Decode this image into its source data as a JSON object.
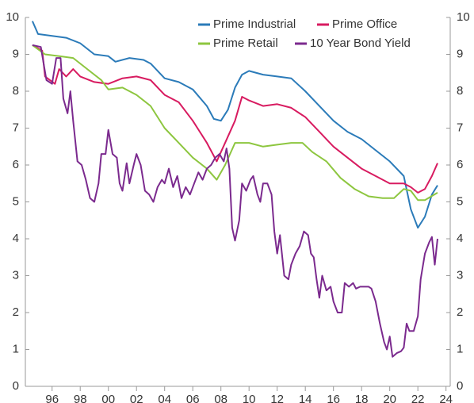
{
  "chart_data": {
    "type": "line",
    "xlim": [
      1994.1,
      2024.3
    ],
    "xticks": [
      {
        "value": 1996,
        "label": "96"
      },
      {
        "value": 1998,
        "label": "98"
      },
      {
        "value": 2000,
        "label": "00"
      },
      {
        "value": 2002,
        "label": "02"
      },
      {
        "value": 2004,
        "label": "04"
      },
      {
        "value": 2006,
        "label": "06"
      },
      {
        "value": 2008,
        "label": "08"
      },
      {
        "value": 2010,
        "label": "10"
      },
      {
        "value": 2012,
        "label": "12"
      },
      {
        "value": 2014,
        "label": "14"
      },
      {
        "value": 2016,
        "label": "16"
      },
      {
        "value": 2018,
        "label": "18"
      },
      {
        "value": 2020,
        "label": "20"
      },
      {
        "value": 2022,
        "label": "22"
      },
      {
        "value": 2024,
        "label": "24"
      }
    ],
    "ylim": [
      0,
      10
    ],
    "yticks": [
      0,
      1,
      2,
      3,
      4,
      5,
      6,
      7,
      8,
      9,
      10
    ],
    "y2lim": [
      0,
      10
    ],
    "y2ticks": [
      0,
      1,
      2,
      3,
      4,
      5,
      6,
      7,
      8,
      9,
      10
    ],
    "legend": "top-right",
    "series": [
      {
        "name": "Prime Industrial",
        "color": "#2b7bb9",
        "x": [
          1994.6,
          1995,
          1996,
          1997,
          1998,
          1999,
          2000,
          2000.5,
          2001.5,
          2002.5,
          2003,
          2004,
          2005,
          2006,
          2007,
          2007.5,
          2008,
          2008.5,
          2009,
          2009.5,
          2010,
          2011,
          2012,
          2013,
          2014,
          2015,
          2016,
          2017,
          2018,
          2019,
          2020,
          2021,
          2021.5,
          2022,
          2022.5,
          2023,
          2023.4
        ],
        "values": [
          9.9,
          9.55,
          9.5,
          9.45,
          9.3,
          9.0,
          8.95,
          8.8,
          8.9,
          8.85,
          8.75,
          8.35,
          8.25,
          8.05,
          7.6,
          7.25,
          7.2,
          7.5,
          8.1,
          8.45,
          8.55,
          8.45,
          8.4,
          8.35,
          8.0,
          7.6,
          7.2,
          6.9,
          6.7,
          6.4,
          6.1,
          5.7,
          4.8,
          4.3,
          4.6,
          5.2,
          5.45
        ]
      },
      {
        "name": "Prime Office",
        "color": "#d81b60",
        "x": [
          1994.6,
          1995.3,
          1995.5,
          1996.2,
          1996.5,
          1997,
          1997.5,
          1998,
          1999,
          2000,
          2001,
          2002,
          2003,
          2004,
          2005,
          2006,
          2007,
          2007.7,
          2008.3,
          2009,
          2009.5,
          2010,
          2011,
          2012,
          2013,
          2014,
          2015,
          2016,
          2017,
          2018,
          2019,
          2020,
          2021,
          2021.5,
          2022,
          2022.5,
          2023,
          2023.4
        ],
        "values": [
          9.25,
          9.1,
          8.4,
          8.2,
          8.6,
          8.4,
          8.6,
          8.4,
          8.25,
          8.2,
          8.35,
          8.4,
          8.3,
          7.9,
          7.7,
          7.2,
          6.6,
          6.1,
          6.6,
          7.2,
          7.85,
          7.75,
          7.6,
          7.65,
          7.55,
          7.3,
          6.9,
          6.5,
          6.2,
          5.9,
          5.7,
          5.5,
          5.5,
          5.4,
          5.25,
          5.35,
          5.7,
          6.05
        ]
      },
      {
        "name": "Prime Retail",
        "color": "#8dc63f",
        "x": [
          1994.6,
          1995.5,
          1996.5,
          1997.5,
          1998.5,
          1999.5,
          2000,
          2001,
          2002,
          2003,
          2004,
          2005,
          2006,
          2007,
          2007.7,
          2008.3,
          2009,
          2010,
          2011,
          2012,
          2013,
          2013.8,
          2014.5,
          2015.5,
          2016.5,
          2017.5,
          2018.5,
          2019.5,
          2020.3,
          2021,
          2021.5,
          2022,
          2022.5,
          2023.4
        ],
        "values": [
          9.25,
          9.0,
          8.95,
          8.9,
          8.6,
          8.3,
          8.05,
          8.1,
          7.9,
          7.6,
          7.0,
          6.6,
          6.2,
          5.9,
          5.6,
          6.0,
          6.6,
          6.6,
          6.5,
          6.55,
          6.6,
          6.6,
          6.35,
          6.1,
          5.65,
          5.35,
          5.15,
          5.1,
          5.1,
          5.35,
          5.3,
          5.05,
          5.05,
          5.25
        ]
      },
      {
        "name": "10 Year Bond Yield",
        "color": "#7b2a8e",
        "x": [
          1994.6,
          1995.2,
          1995.6,
          1996,
          1996.3,
          1996.6,
          1996.8,
          1997.1,
          1997.3,
          1997.5,
          1997.8,
          1998.1,
          1998.4,
          1998.7,
          1999,
          1999.3,
          1999.5,
          1999.8,
          2000,
          2000.3,
          2000.6,
          2000.8,
          2001,
          2001.3,
          2001.5,
          2001.8,
          2002,
          2002.3,
          2002.6,
          2002.9,
          2003.2,
          2003.5,
          2003.8,
          2004,
          2004.3,
          2004.6,
          2004.9,
          2005.2,
          2005.5,
          2005.8,
          2006.1,
          2006.4,
          2006.7,
          2007,
          2007.3,
          2007.6,
          2007.9,
          2008.2,
          2008.4,
          2008.6,
          2008.8,
          2009,
          2009.3,
          2009.5,
          2009.8,
          2010.1,
          2010.3,
          2010.6,
          2010.8,
          2011,
          2011.3,
          2011.6,
          2011.8,
          2012,
          2012.2,
          2012.5,
          2012.8,
          2013,
          2013.3,
          2013.6,
          2013.9,
          2014.2,
          2014.4,
          2014.6,
          2014.8,
          2015,
          2015.2,
          2015.5,
          2015.8,
          2016,
          2016.3,
          2016.6,
          2016.8,
          2017.1,
          2017.4,
          2017.6,
          2017.9,
          2018.2,
          2018.5,
          2018.7,
          2019,
          2019.3,
          2019.6,
          2019.8,
          2020,
          2020.2,
          2020.5,
          2020.8,
          2021,
          2021.2,
          2021.4,
          2021.7,
          2022,
          2022.2,
          2022.5,
          2022.8,
          2023,
          2023.2,
          2023.4
        ],
        "values": [
          9.25,
          9.2,
          8.3,
          8.2,
          8.9,
          8.9,
          7.8,
          7.4,
          8.0,
          7.2,
          6.1,
          6.0,
          5.6,
          5.1,
          5.0,
          5.5,
          6.3,
          6.3,
          6.95,
          6.3,
          6.2,
          5.5,
          5.3,
          6.05,
          5.5,
          6.0,
          6.3,
          6.0,
          5.3,
          5.2,
          5.0,
          5.4,
          5.6,
          5.5,
          5.9,
          5.4,
          5.7,
          5.1,
          5.4,
          5.2,
          5.5,
          5.8,
          5.6,
          5.9,
          6.0,
          6.2,
          6.3,
          6.1,
          6.45,
          5.9,
          4.3,
          3.95,
          4.5,
          5.5,
          5.3,
          5.6,
          5.7,
          5.2,
          5.0,
          5.5,
          5.5,
          5.2,
          4.2,
          3.6,
          4.1,
          3.0,
          2.9,
          3.3,
          3.6,
          3.8,
          4.2,
          4.1,
          3.6,
          3.5,
          2.9,
          2.4,
          3.0,
          2.6,
          2.7,
          2.3,
          2.0,
          2.0,
          2.8,
          2.7,
          2.8,
          2.65,
          2.7,
          2.7,
          2.7,
          2.65,
          2.3,
          1.7,
          1.2,
          1.0,
          1.35,
          0.8,
          0.9,
          0.95,
          1.05,
          1.7,
          1.5,
          1.5,
          1.9,
          2.9,
          3.6,
          3.9,
          4.05,
          3.3,
          4.0
        ]
      }
    ]
  }
}
